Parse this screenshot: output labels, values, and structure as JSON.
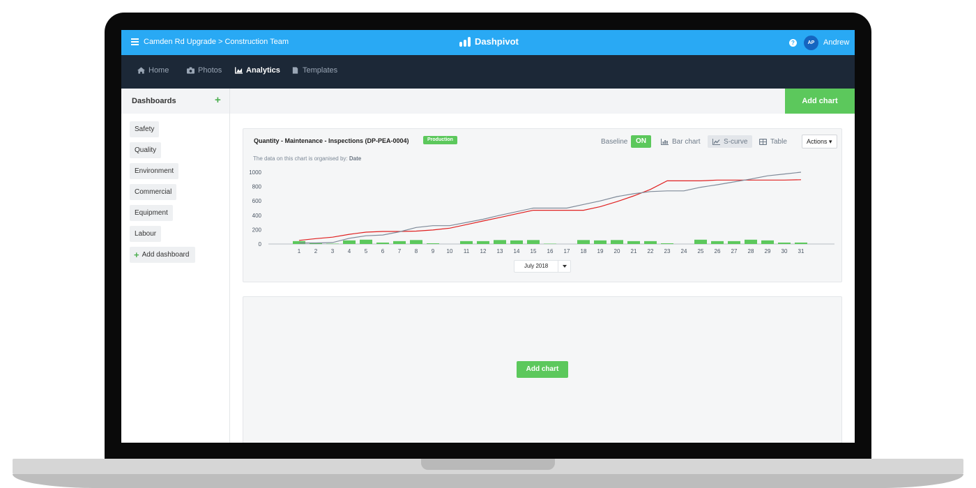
{
  "header": {
    "project_path": "Camden Rd Upgrade > Construction Team",
    "brand": "Dashpivot",
    "avatar_initials": "AP",
    "user_name": "Andrew"
  },
  "nav": {
    "items": [
      {
        "label": "Home",
        "icon": "home-icon",
        "active": false
      },
      {
        "label": "Photos",
        "icon": "camera-icon",
        "active": false
      },
      {
        "label": "Analytics",
        "icon": "analytics-icon",
        "active": true
      },
      {
        "label": "Templates",
        "icon": "document-icon",
        "active": false
      }
    ]
  },
  "sidebar": {
    "title": "Dashboards",
    "items": [
      "Safety",
      "Quality",
      "Environment",
      "Commercial",
      "Equipment",
      "Labour"
    ],
    "add_label": "Add dashboard"
  },
  "toolbar": {
    "add_chart_label": "Add chart"
  },
  "chart_card": {
    "title": "Quantity - Maintenance - Inspections (DP-PEA-0004)",
    "badge": "Production",
    "subtitle_prefix": "The data on this chart is organised by:",
    "subtitle_value": "Date",
    "baseline_label": "Baseline",
    "baseline_toggle": "ON",
    "views": [
      {
        "label": "Bar chart",
        "icon": "bar-chart-icon",
        "selected": false
      },
      {
        "label": "S-curve",
        "icon": "line-chart-icon",
        "selected": true
      },
      {
        "label": "Table",
        "icon": "table-icon",
        "selected": false
      }
    ],
    "actions_label": "Actions",
    "month": "July 2018"
  },
  "empty_card": {
    "add_chart_label": "Add chart"
  },
  "colors": {
    "brand_blue": "#29a9f4",
    "nav_dark": "#1c2837",
    "accent_green": "#5cc85c",
    "actual_line": "#e02020",
    "baseline_line": "#7f8a99"
  },
  "chart_data": {
    "type": "bar",
    "categories": [
      "1",
      "2",
      "3",
      "4",
      "5",
      "6",
      "7",
      "8",
      "9",
      "10",
      "11",
      "12",
      "13",
      "14",
      "15",
      "16",
      "17",
      "18",
      "19",
      "20",
      "21",
      "22",
      "23",
      "24",
      "25",
      "26",
      "27",
      "28",
      "29",
      "30",
      "31"
    ],
    "ylim": [
      0,
      1000
    ],
    "yticks": [
      "1000",
      "800",
      "600",
      "400",
      "200",
      "0"
    ],
    "series": [
      {
        "kind": "bar",
        "color": "#5cc85c",
        "values": [
          40,
          10,
          5,
          50,
          60,
          20,
          40,
          55,
          10,
          0,
          40,
          40,
          55,
          50,
          55,
          5,
          0,
          55,
          50,
          55,
          40,
          40,
          10,
          0,
          60,
          40,
          40,
          60,
          50,
          20,
          20
        ]
      },
      {
        "kind": "line",
        "color": "#e02020",
        "values": [
          50,
          75,
          95,
          135,
          165,
          175,
          175,
          180,
          195,
          220,
          270,
          320,
          370,
          420,
          470,
          470,
          470,
          470,
          520,
          590,
          670,
          760,
          880,
          880,
          880,
          890,
          890,
          890,
          890,
          890,
          895
        ]
      },
      {
        "kind": "line",
        "color": "#7f8a99",
        "values": [
          15,
          15,
          20,
          80,
          115,
          125,
          170,
          230,
          255,
          255,
          300,
          345,
          400,
          450,
          500,
          500,
          500,
          550,
          600,
          660,
          700,
          730,
          740,
          740,
          790,
          825,
          865,
          905,
          950,
          975,
          1000
        ]
      }
    ]
  }
}
